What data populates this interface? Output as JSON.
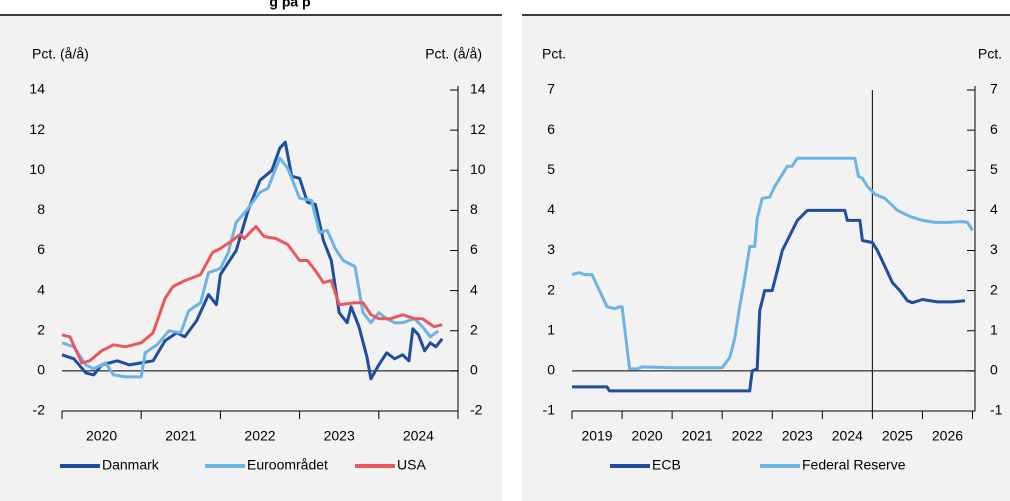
{
  "chart_data": [
    {
      "type": "line",
      "title": "g på p",
      "ylabel_left": "Pct. (å/å)",
      "ylabel_right": "Pct. (å/å)",
      "xlim": [
        2020,
        2025
      ],
      "ylim": [
        -2,
        14
      ],
      "yticks": [
        -2,
        0,
        2,
        4,
        6,
        8,
        10,
        12,
        14
      ],
      "xticks": [
        {
          "value": 2020.5,
          "label": "2020"
        },
        {
          "value": 2021.5,
          "label": "2021"
        },
        {
          "value": 2022.5,
          "label": "2022"
        },
        {
          "value": 2023.5,
          "label": "2023"
        },
        {
          "value": 2024.5,
          "label": "2024"
        }
      ],
      "series": [
        {
          "name": "Danmark",
          "color": "#1f4e9c",
          "x": [
            2020.0,
            2020.15,
            2020.3,
            2020.4,
            2020.5,
            2020.7,
            2020.85,
            2021.0,
            2021.15,
            2021.3,
            2021.45,
            2021.55,
            2021.7,
            2021.85,
            2021.95,
            2022.0,
            2022.2,
            2022.35,
            2022.5,
            2022.65,
            2022.75,
            2022.82,
            2022.9,
            2023.0,
            2023.1,
            2023.2,
            2023.3,
            2023.4,
            2023.5,
            2023.6,
            2023.65,
            2023.75,
            2023.85,
            2023.9,
            2024.0,
            2024.1,
            2024.2,
            2024.3,
            2024.38,
            2024.43,
            2024.5,
            2024.58,
            2024.65,
            2024.72,
            2024.8
          ],
          "values": [
            0.8,
            0.6,
            -0.1,
            -0.2,
            0.3,
            0.5,
            0.3,
            0.4,
            0.5,
            1.5,
            1.9,
            1.7,
            2.5,
            3.8,
            3.3,
            4.8,
            6.0,
            8.0,
            9.5,
            10.0,
            11.1,
            11.4,
            9.7,
            9.6,
            8.4,
            8.3,
            6.5,
            5.5,
            2.9,
            2.4,
            3.2,
            2.2,
            0.7,
            -0.4,
            0.3,
            0.9,
            0.6,
            0.8,
            0.5,
            2.1,
            1.8,
            1.0,
            1.4,
            1.2,
            1.6
          ]
        },
        {
          "name": "Euroområdet",
          "color": "#6cb4e4",
          "x": [
            2020.0,
            2020.15,
            2020.3,
            2020.4,
            2020.55,
            2020.65,
            2020.8,
            2021.0,
            2021.05,
            2021.2,
            2021.35,
            2021.5,
            2021.6,
            2021.75,
            2021.85,
            2022.0,
            2022.1,
            2022.2,
            2022.35,
            2022.5,
            2022.6,
            2022.75,
            2022.85,
            2023.0,
            2023.15,
            2023.25,
            2023.35,
            2023.45,
            2023.55,
            2023.7,
            2023.8,
            2023.9,
            2024.0,
            2024.1,
            2024.2,
            2024.3,
            2024.45,
            2024.55,
            2024.65,
            2024.75
          ],
          "values": [
            1.4,
            1.2,
            0.3,
            0.1,
            0.4,
            -0.2,
            -0.3,
            -0.3,
            0.9,
            1.3,
            2.0,
            1.9,
            3.0,
            3.4,
            4.9,
            5.1,
            5.9,
            7.4,
            8.1,
            8.9,
            9.1,
            10.6,
            10.1,
            8.6,
            8.5,
            6.9,
            7.0,
            6.1,
            5.5,
            5.2,
            2.9,
            2.4,
            2.9,
            2.6,
            2.4,
            2.4,
            2.6,
            2.2,
            1.7,
            2.0
          ]
        },
        {
          "name": "USA",
          "color": "#e8585c",
          "x": [
            2020.0,
            2020.1,
            2020.25,
            2020.35,
            2020.5,
            2020.65,
            2020.8,
            2021.0,
            2021.15,
            2021.3,
            2021.4,
            2021.55,
            2021.75,
            2021.9,
            2022.0,
            2022.15,
            2022.25,
            2022.3,
            2022.45,
            2022.55,
            2022.7,
            2022.85,
            2023.0,
            2023.1,
            2023.2,
            2023.3,
            2023.4,
            2023.5,
            2023.7,
            2023.8,
            2023.9,
            2024.0,
            2024.15,
            2024.3,
            2024.45,
            2024.55,
            2024.7,
            2024.8
          ],
          "values": [
            1.8,
            1.7,
            0.4,
            0.5,
            1.0,
            1.3,
            1.2,
            1.4,
            1.9,
            3.6,
            4.2,
            4.5,
            4.8,
            5.9,
            6.1,
            6.5,
            6.8,
            6.6,
            7.2,
            6.7,
            6.6,
            6.3,
            5.5,
            5.5,
            5.0,
            4.4,
            4.5,
            3.3,
            3.4,
            3.4,
            2.8,
            2.6,
            2.6,
            2.8,
            2.6,
            2.6,
            2.2,
            2.3
          ]
        }
      ]
    },
    {
      "type": "line",
      "ylabel_left": "Pct.",
      "ylabel_right": "Pct.",
      "xlim": [
        2019,
        2027.05
      ],
      "ylim": [
        -1,
        7
      ],
      "yticks": [
        -1,
        0,
        1,
        2,
        3,
        4,
        5,
        6,
        7
      ],
      "vline": 2025,
      "xticks": [
        {
          "value": 2019.5,
          "label": "2019"
        },
        {
          "value": 2020.5,
          "label": "2020"
        },
        {
          "value": 2021.5,
          "label": "2021"
        },
        {
          "value": 2022.5,
          "label": "2022"
        },
        {
          "value": 2023.5,
          "label": "2023"
        },
        {
          "value": 2024.5,
          "label": "2024"
        },
        {
          "value": 2025.5,
          "label": "2025"
        },
        {
          "value": 2026.5,
          "label": "2026"
        }
      ],
      "series": [
        {
          "name": "ECB",
          "color": "#1f4e9c",
          "x": [
            2019.0,
            2019.7,
            2019.75,
            2022.55,
            2022.6,
            2022.7,
            2022.75,
            2022.85,
            2023.0,
            2023.1,
            2023.2,
            2023.3,
            2023.4,
            2023.5,
            2023.7,
            2024.45,
            2024.5,
            2024.75,
            2024.8,
            2025.0,
            2025.1,
            2025.25,
            2025.4,
            2025.55,
            2025.7,
            2025.8,
            2026.0,
            2026.3,
            2026.6,
            2026.85
          ],
          "values": [
            -0.4,
            -0.4,
            -0.5,
            -0.5,
            0,
            0.05,
            1.5,
            2.0,
            2.0,
            2.5,
            3.0,
            3.25,
            3.5,
            3.75,
            4.0,
            4.0,
            3.75,
            3.75,
            3.25,
            3.2,
            3.0,
            2.6,
            2.2,
            2.0,
            1.75,
            1.7,
            1.78,
            1.72,
            1.72,
            1.75
          ]
        },
        {
          "name": "Federal Reserve",
          "color": "#6cb4e4",
          "x": [
            2019.0,
            2019.15,
            2019.25,
            2019.4,
            2019.55,
            2019.7,
            2019.85,
            2019.95,
            2020.0,
            2020.15,
            2020.3,
            2020.4,
            2021.0,
            2022.0,
            2022.15,
            2022.25,
            2022.35,
            2022.45,
            2022.55,
            2022.65,
            2022.7,
            2022.8,
            2022.95,
            2023.05,
            2023.2,
            2023.3,
            2023.4,
            2023.5,
            2024.65,
            2024.72,
            2024.8,
            2024.9,
            2025.05,
            2025.25,
            2025.5,
            2025.75,
            2026.0,
            2026.25,
            2026.5,
            2026.8,
            2026.9,
            2027.0
          ],
          "values": [
            2.4,
            2.45,
            2.4,
            2.4,
            2.0,
            1.6,
            1.55,
            1.6,
            1.6,
            0.05,
            0.05,
            0.1,
            0.08,
            0.08,
            0.33,
            0.8,
            1.6,
            2.3,
            3.1,
            3.1,
            3.8,
            4.3,
            4.33,
            4.6,
            4.9,
            5.1,
            5.1,
            5.3,
            5.3,
            4.85,
            4.8,
            4.6,
            4.4,
            4.3,
            4.0,
            3.85,
            3.75,
            3.7,
            3.7,
            3.72,
            3.7,
            3.5
          ]
        }
      ]
    }
  ]
}
